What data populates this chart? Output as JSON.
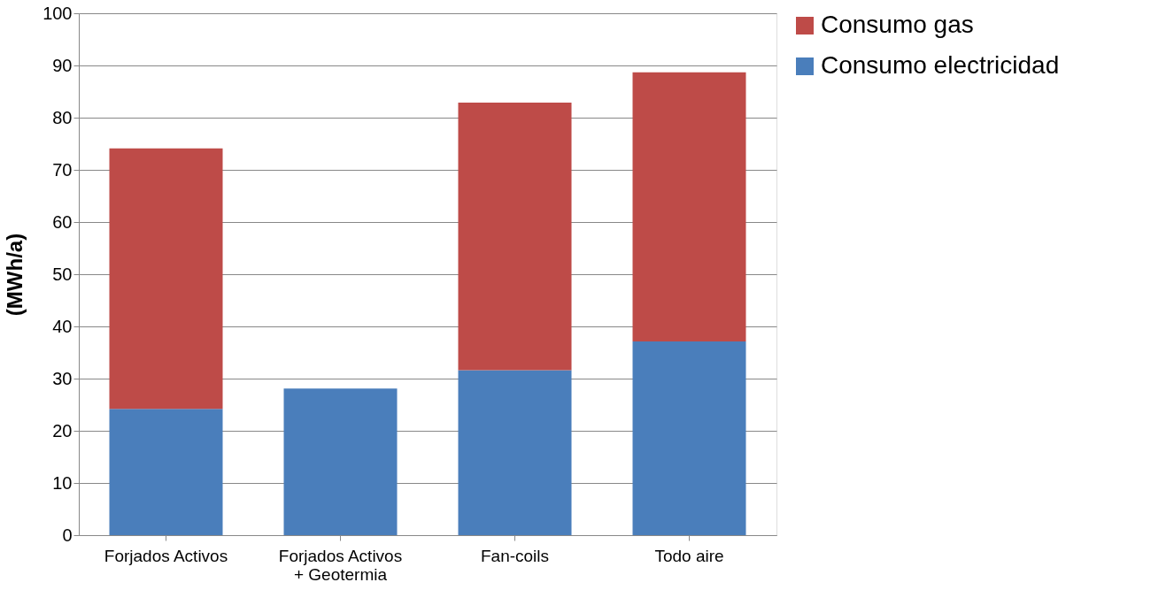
{
  "chart_data": {
    "type": "bar",
    "stacked": true,
    "ylabel": "(MWh/a)",
    "categories": [
      "Forjados Activos",
      "Forjados Activos + Geotermia",
      "Fan-coils",
      "Todo aire"
    ],
    "series": [
      {
        "name": "Consumo electricidad",
        "color": "#4a7ebb",
        "values": [
          24.2,
          28.1,
          31.6,
          37.1
        ]
      },
      {
        "name": "Consumo gas",
        "color": "#be4b48",
        "values": [
          49.9,
          null,
          51.3,
          51.6
        ]
      }
    ],
    "ylim": [
      0,
      100
    ],
    "yticks": [
      0,
      10,
      20,
      30,
      40,
      50,
      60,
      70,
      80,
      90,
      100
    ],
    "grid": "y",
    "legend": "right"
  }
}
